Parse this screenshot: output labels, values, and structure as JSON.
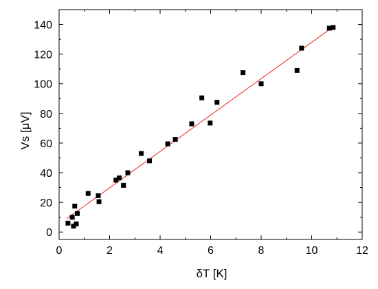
{
  "chart_data": {
    "type": "scatter",
    "title": "",
    "xlabel": "δT [K]",
    "ylabel": "Vs [μV]",
    "xlim": [
      0,
      12
    ],
    "ylim": [
      -5,
      150
    ],
    "x_ticks": [
      0,
      2,
      4,
      6,
      8,
      10,
      12
    ],
    "y_ticks": [
      0,
      20,
      40,
      60,
      80,
      100,
      120,
      140
    ],
    "grid": false,
    "legend": "none",
    "colors": {
      "points": "#000000",
      "fit_line": "#e8251f",
      "axes": "#000000"
    },
    "series": [
      {
        "marker": "square",
        "points": [
          [
            0.35,
            6
          ],
          [
            0.52,
            10
          ],
          [
            0.57,
            4
          ],
          [
            0.62,
            17.5
          ],
          [
            0.68,
            5.5
          ],
          [
            0.72,
            12.5
          ],
          [
            1.15,
            26
          ],
          [
            1.55,
            24.5
          ],
          [
            1.58,
            20.5
          ],
          [
            2.25,
            35
          ],
          [
            2.38,
            36.5
          ],
          [
            2.55,
            31.5
          ],
          [
            2.72,
            40
          ],
          [
            3.25,
            53
          ],
          [
            3.58,
            48
          ],
          [
            4.3,
            59.5
          ],
          [
            4.6,
            62.5
          ],
          [
            5.25,
            73
          ],
          [
            5.65,
            90.5
          ],
          [
            5.98,
            73.5
          ],
          [
            6.25,
            87.5
          ],
          [
            7.28,
            107.5
          ],
          [
            8.0,
            100
          ],
          [
            9.42,
            109
          ],
          [
            9.6,
            124
          ],
          [
            10.7,
            137.5
          ],
          [
            10.85,
            138
          ]
        ]
      }
    ],
    "fit_line": {
      "x": [
        0.3,
        10.9
      ],
      "y": [
        9,
        139
      ]
    }
  }
}
